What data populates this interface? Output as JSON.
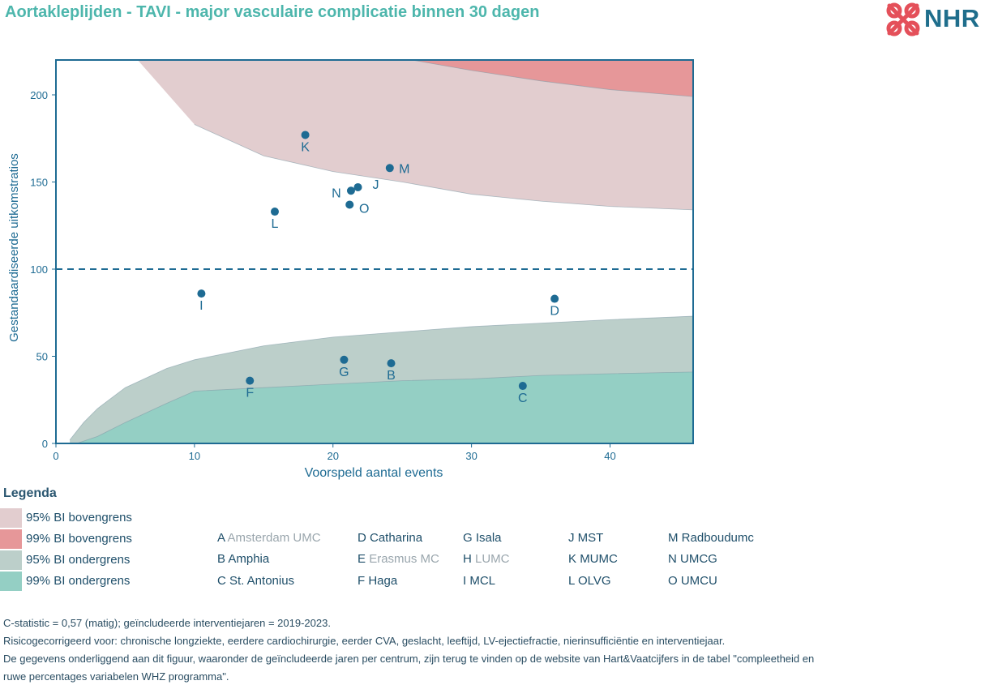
{
  "title": "Aortakleplijden - TAVI - major vasculaire complicatie binnen 30 dagen",
  "logo": {
    "text": "NHR",
    "icon": "nhr-heart-cross-icon",
    "color": "#e4505a"
  },
  "chart_data": {
    "type": "scatter",
    "xlabel": "Voorspeld aantal events",
    "ylabel": "Gestandaardiseerde uitkomstratios",
    "xlim": [
      0,
      46
    ],
    "ylim": [
      0,
      220
    ],
    "xticks": [
      0,
      10,
      20,
      30,
      40
    ],
    "yticks": [
      0,
      50,
      100,
      150,
      200
    ],
    "reference_line": 100,
    "point_color": "#1e6b93",
    "points": [
      {
        "label": "K",
        "x": 18.0,
        "y": 177
      },
      {
        "label": "M",
        "x": 24.1,
        "y": 158
      },
      {
        "label": "J",
        "x": 21.8,
        "y": 147
      },
      {
        "label": "N",
        "x": 21.3,
        "y": 145
      },
      {
        "label": "O",
        "x": 21.2,
        "y": 137
      },
      {
        "label": "L",
        "x": 15.8,
        "y": 133
      },
      {
        "label": "I",
        "x": 10.5,
        "y": 86
      },
      {
        "label": "D",
        "x": 36.0,
        "y": 83
      },
      {
        "label": "G",
        "x": 20.8,
        "y": 48
      },
      {
        "label": "B",
        "x": 24.2,
        "y": 46
      },
      {
        "label": "F",
        "x": 14.0,
        "y": 36
      },
      {
        "label": "C",
        "x": 33.7,
        "y": 33
      }
    ],
    "bands": [
      {
        "name": "95% BI bovengrens",
        "color": "#e2cdcf",
        "lower": [
          [
            10,
            183
          ],
          [
            15,
            165
          ],
          [
            20,
            156
          ],
          [
            25,
            150
          ],
          [
            30,
            143
          ],
          [
            35,
            139
          ],
          [
            40,
            136
          ],
          [
            46,
            134
          ]
        ],
        "upper": [
          [
            5.9,
            220
          ],
          [
            46,
            220
          ]
        ]
      },
      {
        "name": "99% BI bovengrens",
        "color": "#e69799",
        "lower": [
          [
            25.7,
            220
          ],
          [
            30,
            214
          ],
          [
            35,
            208
          ],
          [
            40,
            203
          ],
          [
            46,
            199
          ]
        ],
        "upper": [
          [
            25.7,
            220
          ],
          [
            46,
            220
          ]
        ]
      },
      {
        "name": "95% BI ondergrens",
        "color": "#bccfca",
        "lower": [
          [
            1,
            0
          ],
          [
            46,
            0
          ]
        ],
        "upper": [
          [
            1,
            2
          ],
          [
            2,
            12
          ],
          [
            3,
            20
          ],
          [
            5,
            32
          ],
          [
            8,
            43
          ],
          [
            10,
            48
          ],
          [
            15,
            56
          ],
          [
            20,
            61
          ],
          [
            25,
            64
          ],
          [
            30,
            67
          ],
          [
            35,
            69
          ],
          [
            40,
            71
          ],
          [
            46,
            73
          ]
        ]
      },
      {
        "name": "99% BI ondergrens",
        "color": "#94cfc4",
        "lower": [
          [
            1.5,
            0
          ],
          [
            46,
            0
          ]
        ],
        "upper": [
          [
            1.5,
            0
          ],
          [
            3,
            4
          ],
          [
            5,
            12
          ],
          [
            8,
            23
          ],
          [
            10,
            30
          ],
          [
            15,
            32
          ],
          [
            20,
            34
          ],
          [
            25,
            36
          ],
          [
            30,
            37
          ],
          [
            35,
            39
          ],
          [
            40,
            40
          ],
          [
            46,
            41
          ]
        ]
      }
    ]
  },
  "legend": {
    "title": "Legenda",
    "swatches": [
      {
        "label": "95% BI bovengrens",
        "color": "#e2cdcf"
      },
      {
        "label": "99% BI bovengrens",
        "color": "#e69799"
      },
      {
        "label": "95% BI ondergrens",
        "color": "#bccfca"
      },
      {
        "label": "99% BI ondergrens",
        "color": "#94cfc4"
      }
    ],
    "centers": [
      {
        "code": "A",
        "name": "Amsterdam UMC",
        "excluded": true
      },
      {
        "code": "B",
        "name": "Amphia",
        "excluded": false
      },
      {
        "code": "C",
        "name": "St. Antonius",
        "excluded": false
      },
      {
        "code": "D",
        "name": "Catharina",
        "excluded": false
      },
      {
        "code": "E",
        "name": "Erasmus MC",
        "excluded": true
      },
      {
        "code": "F",
        "name": "Haga",
        "excluded": false
      },
      {
        "code": "G",
        "name": "Isala",
        "excluded": false
      },
      {
        "code": "H",
        "name": "LUMC",
        "excluded": true
      },
      {
        "code": "I",
        "name": "MCL",
        "excluded": false
      },
      {
        "code": "J",
        "name": "MST",
        "excluded": false
      },
      {
        "code": "K",
        "name": "MUMC",
        "excluded": false
      },
      {
        "code": "L",
        "name": "OLVG",
        "excluded": false
      },
      {
        "code": "M",
        "name": "Radboudumc",
        "excluded": false
      },
      {
        "code": "N",
        "name": "UMCG",
        "excluded": false
      },
      {
        "code": "O",
        "name": "UMCU",
        "excluded": false
      }
    ]
  },
  "footnotes": [
    "C-statistic =  0,57 (matig); geïncludeerde interventiejaren = 2019-2023.",
    "Risicogecorrigeerd voor: chronische longziekte, eerdere cardiochirurgie, eerder CVA, geslacht, leeftijd, LV-ejectiefractie, nierinsufficiëntie en interventiejaar.",
    "De gegevens onderliggend aan dit figuur, waaronder de geïncludeerde jaren per centrum, zijn terug te vinden op de website van Hart&Vaatcijfers in de tabel \"compleetheid en",
    "ruwe percentages variabelen WHZ programma\"."
  ]
}
